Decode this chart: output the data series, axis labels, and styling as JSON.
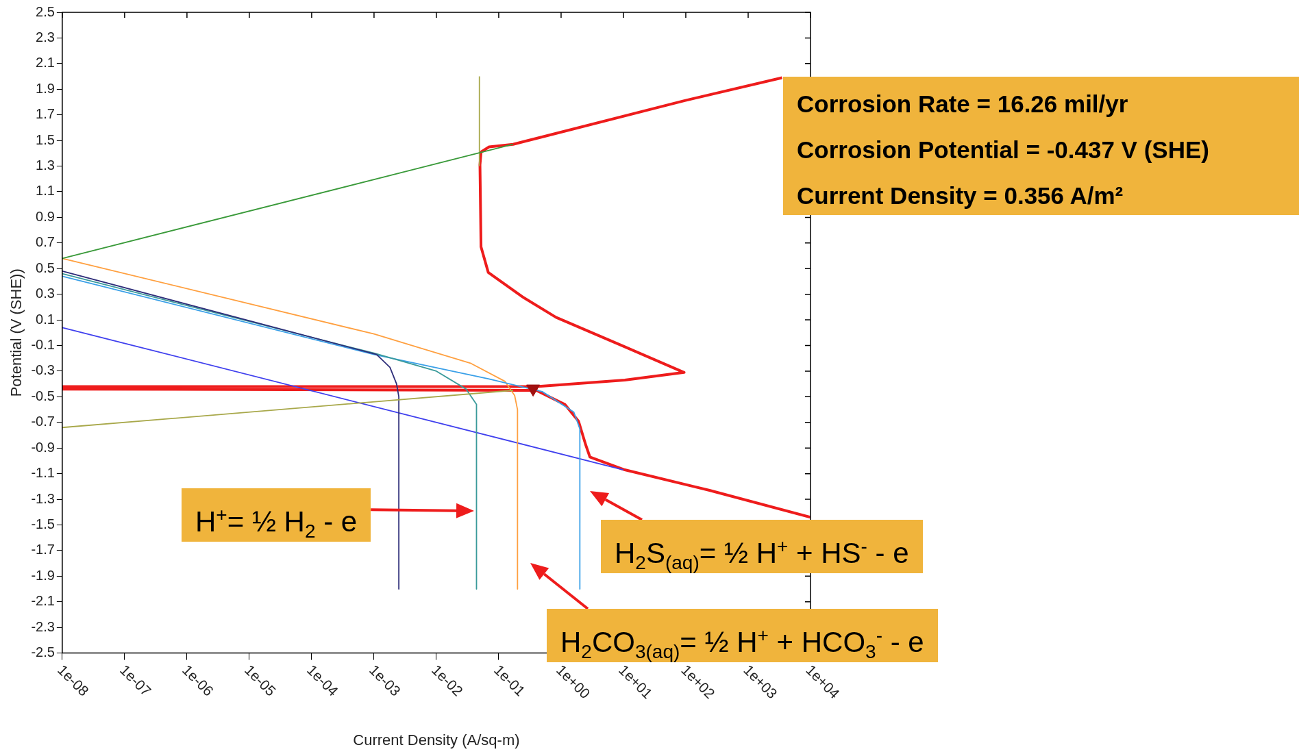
{
  "chart_data": {
    "type": "line",
    "xlabel": "Current Density (A/sq-m)",
    "ylabel": "Potential (V (SHE))",
    "log": "x",
    "grid": false,
    "legend": false,
    "marker": "none",
    "line_style": "solid",
    "xlim": [
      1e-08,
      10000
    ],
    "ylim": [
      -2.5,
      2.5
    ],
    "xticks": [
      {
        "value": 1e-08,
        "label": "1e-08"
      },
      {
        "value": 1e-07,
        "label": "1e-07"
      },
      {
        "value": 1e-06,
        "label": "1e-06"
      },
      {
        "value": 1e-05,
        "label": "1e-05"
      },
      {
        "value": 0.0001,
        "label": "1e-04"
      },
      {
        "value": 0.001,
        "label": "1e-03"
      },
      {
        "value": 0.01,
        "label": "1e-02"
      },
      {
        "value": 0.1,
        "label": "1e-01"
      },
      {
        "value": 1,
        "label": "1e+00"
      },
      {
        "value": 10,
        "label": "1e+01"
      },
      {
        "value": 100,
        "label": "1e+02"
      },
      {
        "value": 1000,
        "label": "1e+03"
      },
      {
        "value": 10000,
        "label": "1e+04"
      }
    ],
    "yticks": [
      2.5,
      2.3,
      2.1,
      1.9,
      1.7,
      1.5,
      1.3,
      1.1,
      0.9,
      0.7,
      0.5,
      0.3,
      0.1,
      -0.1,
      -0.3,
      -0.5,
      -0.7,
      -0.9,
      -1.1,
      -1.3,
      -1.5,
      -1.7,
      -1.9,
      -2.1,
      -2.3,
      -2.5
    ],
    "series": [
      {
        "type": "line",
        "color": "#3a9a3a",
        "x": [
          1e-08,
          0.17
        ],
        "values": [
          0.58,
          1.47
        ]
      },
      {
        "type": "line",
        "color": "#a8a84a",
        "x": [
          1e-08,
          0.17
        ],
        "values": [
          -0.74,
          -0.45
        ]
      },
      {
        "type": "line",
        "color": "#a8a84a",
        "x": [
          0.049,
          0.049
        ],
        "values": [
          1.3,
          2.0
        ]
      },
      {
        "type": "line",
        "color": "#2e2e7a",
        "x": [
          1e-08,
          0.0011,
          0.0018,
          0.0023,
          0.0025,
          0.0025
        ],
        "values": [
          0.48,
          -0.17,
          -0.27,
          -0.4,
          -0.5,
          -2.0
        ]
      },
      {
        "type": "line",
        "color": "#3a9a9a",
        "x": [
          1e-08,
          0.001,
          0.01,
          0.03,
          0.044,
          0.044
        ],
        "values": [
          0.46,
          -0.16,
          -0.3,
          -0.44,
          -0.56,
          -2.0
        ]
      },
      {
        "type": "line",
        "color": "#3aa0e8",
        "x": [
          1e-08,
          0.001,
          0.068,
          0.5,
          1.6,
          2.0,
          2.0
        ],
        "values": [
          0.44,
          -0.17,
          -0.36,
          -0.46,
          -0.62,
          -0.75,
          -2.0
        ]
      },
      {
        "type": "line",
        "color": "#ffa040",
        "x": [
          1e-08,
          0.001,
          0.036,
          0.126,
          0.18,
          0.2,
          0.2
        ],
        "values": [
          0.58,
          -0.01,
          -0.24,
          -0.38,
          -0.49,
          -0.6,
          -2.0
        ]
      },
      {
        "type": "line",
        "color": "#4040ee",
        "x": [
          1e-08,
          10
        ],
        "values": [
          0.04,
          -1.07
        ]
      },
      {
        "type": "line",
        "color": "#ee1c1c",
        "x": [
          10000,
          240,
          10.5,
          2.9,
          2.5,
          1.9,
          1.15,
          0.4,
          1e-08,
          1e-08,
          0.4,
          10.5,
          94,
          10.5,
          0.83,
          0.24,
          0.068,
          0.052,
          0.05,
          0.052,
          0.07,
          0.17,
          0.52,
          94,
          3500
        ],
        "values": [
          -1.44,
          -1.23,
          -1.07,
          -0.97,
          -0.88,
          -0.69,
          -0.56,
          -0.45,
          -0.44,
          -0.42,
          -0.42,
          -0.37,
          -0.31,
          -0.11,
          0.12,
          0.28,
          0.47,
          0.67,
          1.31,
          1.41,
          1.45,
          1.47,
          1.53,
          1.81,
          1.99
        ]
      },
      {
        "type": "scatter",
        "marker": "triangle",
        "color": "#a01010",
        "x": [
          0.356
        ],
        "values": [
          -0.437
        ]
      }
    ],
    "annotations": [
      "Corrosion Rate = 16.26 mil/yr",
      "Corrosion Potential = -0.437 V (SHE)",
      "Current Density = 0.356 A/m²",
      "H$^{+}$= ½ H$_{2}$ - e",
      "H$_{2}$S$_{(aq)}$= ½ H$^{+}$ + HS$^{-}$ - e",
      "H$_{2}$CO$_{3(aq)}$= ½ H$^{+}$ + HCO$_{3}$$^{-}$ - e"
    ]
  }
}
